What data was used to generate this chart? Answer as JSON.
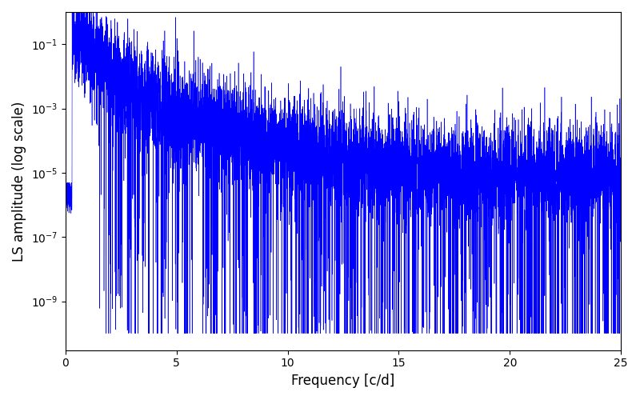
{
  "xlabel": "Frequency [c/d]",
  "ylabel": "LS amplitude (log scale)",
  "xlim": [
    0,
    25
  ],
  "ylim": [
    3e-11,
    1.0
  ],
  "line_color": "#0000ff",
  "line_width": 0.4,
  "figsize": [
    8.0,
    5.0
  ],
  "dpi": 100,
  "n_points": 8000,
  "seed": 7,
  "peak_amp": 0.22,
  "bulk_noise_level_log": -5.0,
  "decay_power": 3.5,
  "log_scatter": 1.8,
  "trough_depth_log": -4.5
}
